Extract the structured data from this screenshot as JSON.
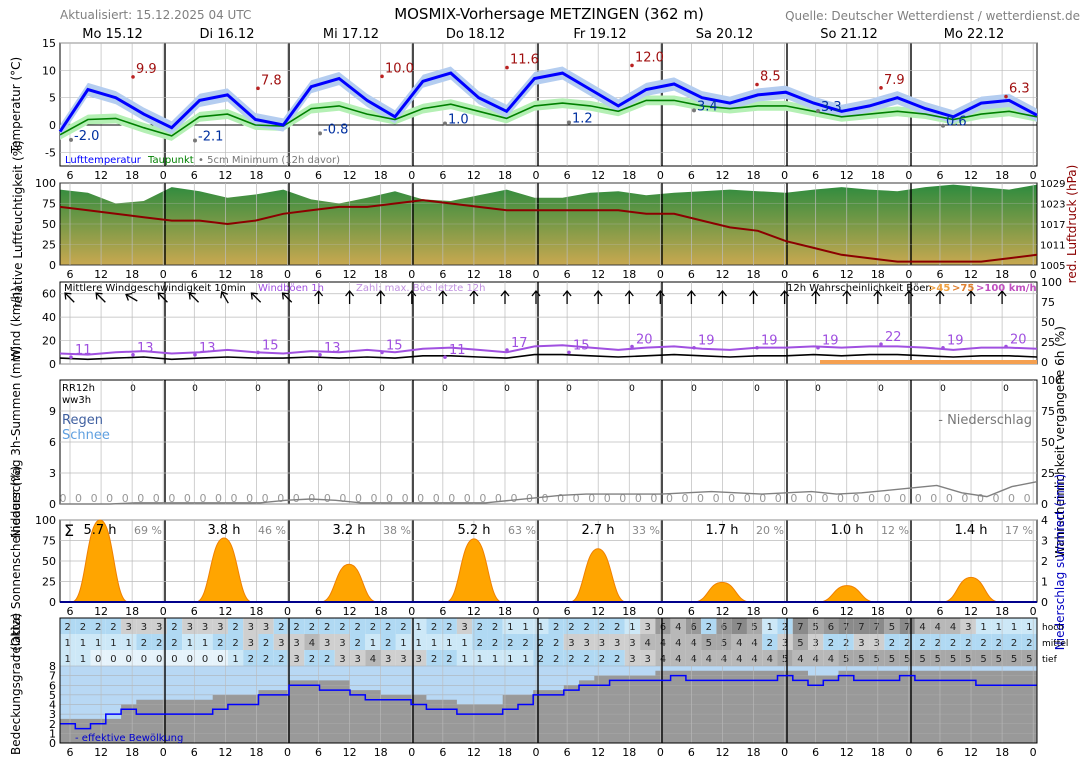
{
  "header": {
    "updated": "Aktualisiert: 15.12.2025 04 UTC",
    "title": "MOSMIX-Vorhersage METZINGEN (362 m)",
    "source": "Quelle: Deutscher Wetterdienst / wetterdienst.de"
  },
  "days": [
    "Mo 15.12",
    "Di 16.12",
    "Mi 17.12",
    "Do 18.12",
    "Fr 19.12",
    "Sa 20.12",
    "So 21.12",
    "Mo 22.12"
  ],
  "hour_ticks": [
    "6",
    "12",
    "18",
    "0",
    "6",
    "12",
    "18",
    "0",
    "6",
    "12",
    "18",
    "0",
    "6",
    "12",
    "18",
    "0",
    "6",
    "12",
    "18",
    "0",
    "6",
    "12",
    "18",
    "0",
    "6",
    "12",
    "18",
    "0",
    "6",
    "12",
    "18",
    "0",
    "6",
    "12",
    "18",
    "0"
  ],
  "colors": {
    "temp": "#0000ff",
    "dew": "#008000",
    "temp_band": "#b4cdf0",
    "dew_band": "#b4f0b4",
    "pressure": "#8b0000",
    "gust": "#a050e0",
    "sun": "#ffa500",
    "cloud_total": "#999999",
    "cloud_eff": "#0000ff",
    "precip": "#808080"
  },
  "chart_data": [
    {
      "type": "line",
      "name": "temperature",
      "ylabel": "Temperatur (°C)",
      "ylim": [
        -7.5,
        15
      ],
      "yticks": [
        15,
        10,
        5,
        0,
        -5
      ],
      "legend": {
        "temp": "Lufttemperatur",
        "dew": "Taupunkt",
        "min5": "5cm Minimum (12h davor)"
      },
      "x_hours": [
        0,
        6,
        12,
        18,
        24,
        30,
        36,
        42,
        48,
        54,
        60,
        66,
        72,
        78,
        84,
        90,
        96,
        102,
        108,
        114,
        120,
        126,
        132,
        138,
        144,
        150,
        156,
        162,
        168,
        174,
        180,
        186,
        192,
        198,
        204,
        210
      ],
      "series": [
        {
          "name": "Lufttemperatur",
          "values": [
            -1.2,
            6.5,
            5.0,
            2.0,
            -0.5,
            4.5,
            5.5,
            1.0,
            0.0,
            7.0,
            8.5,
            4.5,
            1.5,
            8.0,
            9.5,
            5.0,
            2.5,
            8.5,
            9.5,
            6.5,
            3.5,
            6.5,
            7.5,
            5.0,
            4.0,
            5.5,
            6.0,
            4.0,
            2.5,
            3.5,
            5.0,
            3.0,
            1.5,
            4.0,
            4.5,
            1.8
          ]
        },
        {
          "name": "Taupunkt",
          "values": [
            -1.8,
            1.0,
            1.2,
            -0.5,
            -2.0,
            1.5,
            2.0,
            0.0,
            -0.2,
            3.0,
            3.5,
            2.0,
            1.0,
            3.0,
            3.8,
            2.5,
            1.2,
            3.5,
            4.0,
            3.5,
            2.5,
            4.5,
            4.5,
            3.5,
            3.0,
            3.5,
            3.5,
            2.5,
            1.5,
            2.0,
            2.5,
            2.0,
            1.0,
            2.0,
            2.5,
            1.5
          ]
        }
      ],
      "max_labels": [
        {
          "x": 12,
          "value": 9.9
        },
        {
          "x": 36,
          "value": 7.8
        },
        {
          "x": 60,
          "value": 10.0
        },
        {
          "x": 84,
          "value": 11.6
        },
        {
          "x": 108,
          "value": 12.0
        },
        {
          "x": 132,
          "value": 8.5
        },
        {
          "x": 156,
          "value": 7.9
        },
        {
          "x": 180,
          "value": 6.3
        }
      ],
      "min_labels": [
        {
          "x": 0,
          "value": -2.0
        },
        {
          "x": 24,
          "value": -2.1
        },
        {
          "x": 48,
          "value": -0.8
        },
        {
          "x": 72,
          "value": 1.0
        },
        {
          "x": 96,
          "value": 1.2
        },
        {
          "x": 120,
          "value": 3.4
        },
        {
          "x": 144,
          "value": 3.3
        },
        {
          "x": 168,
          "value": 0.6
        }
      ]
    },
    {
      "type": "area",
      "name": "humidity-pressure",
      "ylabel": "relative Luftfeuchtigkeit (%)",
      "y2label": "red. Luftdruck (hPa)",
      "ylim": [
        0,
        100
      ],
      "y2lim": [
        1005,
        1029
      ],
      "yticks": [
        100,
        75,
        50,
        25,
        0
      ],
      "y2ticks": [
        1029,
        1023,
        1017,
        1011,
        1005
      ],
      "humidity": [
        92,
        88,
        75,
        78,
        95,
        90,
        82,
        86,
        92,
        80,
        75,
        82,
        90,
        80,
        78,
        85,
        92,
        82,
        82,
        88,
        90,
        85,
        88,
        90,
        92,
        90,
        88,
        92,
        95,
        92,
        90,
        95,
        98,
        95,
        92,
        98
      ],
      "pressure": [
        1022,
        1021,
        1020,
        1019,
        1018,
        1018,
        1017,
        1018,
        1020,
        1021,
        1022,
        1022,
        1023,
        1024,
        1023,
        1022,
        1021,
        1021,
        1021,
        1021,
        1021,
        1020,
        1020,
        1018,
        1016,
        1015,
        1012,
        1010,
        1008,
        1007,
        1006,
        1006,
        1006,
        1006,
        1007,
        1008
      ]
    },
    {
      "type": "line",
      "name": "wind",
      "ylabel": "Wind (km/h)",
      "ylim": [
        0,
        70
      ],
      "yticks": [
        60,
        40,
        20,
        0
      ],
      "y2ticks": [
        "100",
        "75",
        "50",
        "25",
        "0"
      ],
      "legend": {
        "mean": "Mittlere Windgeschwindigkeit 10min",
        "gust": "Windböen 1h",
        "count": "Zahl: max. Böe letzte 12h",
        "prob": "12h Wahrscheinlichkeit Böen",
        "p45": ">45",
        "p75": ">75",
        "p100": ">100 km/h"
      },
      "mean": [
        5,
        4,
        5,
        6,
        4,
        5,
        6,
        5,
        5,
        6,
        5,
        6,
        5,
        7,
        7,
        6,
        5,
        8,
        8,
        7,
        6,
        7,
        8,
        7,
        6,
        7,
        7,
        8,
        7,
        8,
        8,
        7,
        6,
        7,
        7,
        6
      ],
      "gust": [
        9,
        8,
        10,
        11,
        9,
        10,
        12,
        10,
        9,
        11,
        10,
        12,
        10,
        13,
        14,
        12,
        10,
        15,
        16,
        14,
        12,
        14,
        15,
        13,
        12,
        14,
        14,
        15,
        14,
        15,
        15,
        14,
        12,
        14,
        14,
        13
      ],
      "gust_max_labels": [
        {
          "x": 0,
          "value": 11
        },
        {
          "x": 12,
          "value": 13
        },
        {
          "x": 24,
          "value": 13
        },
        {
          "x": 36,
          "value": 15
        },
        {
          "x": 48,
          "value": 13
        },
        {
          "x": 60,
          "value": 15
        },
        {
          "x": 72,
          "value": 11
        },
        {
          "x": 84,
          "value": 17
        },
        {
          "x": 96,
          "value": 15
        },
        {
          "x": 108,
          "value": 20
        },
        {
          "x": 120,
          "value": 19
        },
        {
          "x": 132,
          "value": 19
        },
        {
          "x": 144,
          "value": 19
        },
        {
          "x": 156,
          "value": 22
        },
        {
          "x": 168,
          "value": 19
        },
        {
          "x": 180,
          "value": 20
        }
      ],
      "direction_deg": [
        135,
        135,
        120,
        135,
        135,
        150,
        135,
        135,
        180,
        180,
        180,
        180,
        180,
        180,
        180,
        180,
        180,
        180,
        180,
        180,
        180,
        180,
        180,
        180,
        180,
        180,
        180,
        180,
        180,
        180,
        180,
        180,
        135,
        135,
        135,
        135
      ]
    },
    {
      "type": "line",
      "name": "precipitation",
      "ylabel": "Niederschlag 3h-Summen (mm)",
      "y2label": "Wahrscheinlichkeit vergangene 6h (%)",
      "ylim": [
        0,
        12
      ],
      "yticks": [
        9,
        6,
        3,
        0
      ],
      "y2ticks": [
        "100",
        "75",
        "50",
        "25",
        "0"
      ],
      "labels": {
        "rr": "RR12h",
        "ww": "ww3h",
        "rain": "Regen",
        "snow": "Schnee",
        "legend": "- Niederschlag"
      },
      "rr12": [
        "0",
        "0",
        "0",
        "0",
        "0",
        "0",
        "0",
        "0",
        "0",
        "0",
        "0",
        "0",
        "0",
        "0",
        "0",
        "0"
      ],
      "precip3h": [
        "0",
        "0",
        "0",
        "0",
        "0",
        "0",
        "0",
        "0",
        "0",
        "0",
        "0",
        "0",
        "0",
        "0",
        "0",
        "0",
        "0",
        "0",
        "0",
        "0",
        "0",
        "0",
        "0",
        "0",
        "0",
        "0",
        "0",
        "0",
        "0",
        "0",
        "0",
        "0",
        "0",
        "0",
        "0",
        "0",
        "0",
        "0",
        "0",
        "0",
        "0",
        "0",
        "0",
        "0",
        "0",
        "0",
        "0",
        "0",
        "0",
        "0",
        "0",
        "0",
        "0",
        "0",
        "0",
        "0",
        "0",
        "0",
        "0",
        "0",
        "0",
        "0",
        "0",
        "0"
      ],
      "probability": [
        0,
        0,
        0,
        1,
        1,
        1,
        1,
        1,
        1,
        3,
        4,
        3,
        1,
        1,
        1,
        1,
        1,
        1,
        3,
        5,
        7,
        8,
        8,
        8,
        8,
        9,
        10,
        9,
        8,
        9,
        10,
        8,
        9,
        11,
        13,
        15,
        9,
        6,
        14,
        18
      ]
    },
    {
      "type": "area",
      "name": "sunshine",
      "ylabel": "relative Sonnenscheindauer (%)",
      "y2label": "Niederschlag summiert (mm)",
      "ylim": [
        0,
        100
      ],
      "yticks": [
        100,
        75,
        50,
        25,
        0
      ],
      "y2ticks": [
        "4",
        "3",
        "2",
        "1",
        "0"
      ],
      "sigma": "Σ",
      "daily": [
        {
          "hours": "5.7 h",
          "pct": "69 %",
          "peak": 100
        },
        {
          "hours": "3.8 h",
          "pct": "46 %",
          "peak": 78
        },
        {
          "hours": "3.2 h",
          "pct": "38 %",
          "peak": 46
        },
        {
          "hours": "5.2 h",
          "pct": "63 %",
          "peak": 77
        },
        {
          "hours": "2.7 h",
          "pct": "33 %",
          "peak": 65
        },
        {
          "hours": "1.7 h",
          "pct": "20 %",
          "peak": 24
        },
        {
          "hours": "1.0 h",
          "pct": "12 %",
          "peak": 20
        },
        {
          "hours": "1.4 h",
          "pct": "17 %",
          "peak": 30
        }
      ]
    },
    {
      "type": "heatmap",
      "name": "cloud-layers",
      "ylabel": "Bedeckungsgrad (Okta)",
      "row_labels": [
        "hoch",
        "mittel",
        "tief"
      ],
      "hoch": [
        "2",
        "2",
        "2",
        "2",
        "3",
        "3",
        "3",
        "2",
        "3",
        "3",
        "3",
        "2",
        "3",
        "3",
        "2",
        "2",
        "2",
        "2",
        "2",
        "2",
        "2",
        "2",
        "2",
        "1",
        "2",
        "2",
        "3",
        "2",
        "2",
        "1",
        "1",
        "1",
        "2",
        "2",
        "2",
        "2",
        "2",
        "1",
        "3",
        "6",
        "4",
        "6",
        "2",
        "6",
        "7",
        "5",
        "1",
        "2",
        "7",
        "5",
        "6",
        "7",
        "7",
        "7",
        "5",
        "7",
        "4",
        "4",
        "4",
        "3",
        "1",
        "1",
        "1",
        "1"
      ],
      "mittel": [
        "1",
        "1",
        "1",
        "1",
        "1",
        "2",
        "2",
        "2",
        "1",
        "1",
        "2",
        "2",
        "3",
        "2",
        "3",
        "3",
        "4",
        "3",
        "3",
        "2",
        "1",
        "2",
        "1",
        "1",
        "1",
        "1",
        "1",
        "2",
        "2",
        "2",
        "2",
        "2",
        "2",
        "3",
        "3",
        "3",
        "3",
        "3",
        "4",
        "4",
        "4",
        "4",
        "5",
        "5",
        "4",
        "4",
        "2",
        "3",
        "5",
        "3",
        "2",
        "2",
        "3",
        "3",
        "2",
        "2",
        "2",
        "2",
        "2",
        "2",
        "2",
        "2",
        "2",
        "2"
      ],
      "tief": [
        "1",
        "1",
        "0",
        "0",
        "0",
        "0",
        "0",
        "0",
        "0",
        "0",
        "0",
        "1",
        "2",
        "2",
        "2",
        "3",
        "2",
        "2",
        "3",
        "3",
        "4",
        "3",
        "3",
        "3",
        "2",
        "2",
        "1",
        "1",
        "1",
        "1",
        "1",
        "2",
        "2",
        "2",
        "2",
        "2",
        "2",
        "3",
        "3",
        "4",
        "4",
        "4",
        "4",
        "4",
        "4",
        "4",
        "4",
        "5",
        "4",
        "4",
        "4",
        "5",
        "5",
        "5",
        "5",
        "5",
        "5",
        "5",
        "5",
        "5",
        "5",
        "5",
        "5",
        "5"
      ],
      "total_okta": [
        2.5,
        2.5,
        2.5,
        2.5,
        4,
        4.5,
        4.5,
        4.5,
        4.5,
        4.5,
        5,
        5,
        5,
        5.5,
        5.5,
        6.5,
        6.5,
        6.5,
        6.5,
        5.5,
        5.5,
        5,
        5,
        5,
        4.5,
        4.5,
        4,
        4,
        4,
        5,
        5,
        5.5,
        5.5,
        6,
        6.5,
        7,
        7,
        7,
        7,
        7.5,
        7.5,
        7.5,
        7.5,
        7.5,
        7.5,
        7.5,
        7.5,
        7.5,
        7.5,
        7,
        7,
        7.5,
        7.5,
        7.5,
        7.5,
        7.5,
        7.5,
        7.5,
        7.5,
        7.5,
        7.5,
        7.5,
        7.5,
        7.5
      ],
      "effective_okta": [
        2,
        1.5,
        2,
        3,
        3.5,
        3,
        3,
        3,
        3,
        3,
        3.5,
        4,
        4,
        5,
        5,
        6,
        6,
        5.5,
        5.5,
        5,
        4.5,
        4.5,
        4.5,
        4,
        3.5,
        3.5,
        3,
        3,
        3,
        3.5,
        4,
        5,
        5,
        5.5,
        6,
        6,
        6.5,
        6.5,
        6.5,
        6.5,
        7,
        6.5,
        6.5,
        6.5,
        6.5,
        6.5,
        6.5,
        7,
        6.5,
        6,
        6.5,
        7,
        6.5,
        6.5,
        6.5,
        7,
        6.5,
        6.5,
        6.5,
        6.5,
        6,
        6,
        6,
        6
      ],
      "yticks": [
        "8",
        "7",
        "6",
        "5",
        "4",
        "3",
        "2",
        "1",
        "0"
      ],
      "legend": "- effektive Bewölkung"
    }
  ]
}
